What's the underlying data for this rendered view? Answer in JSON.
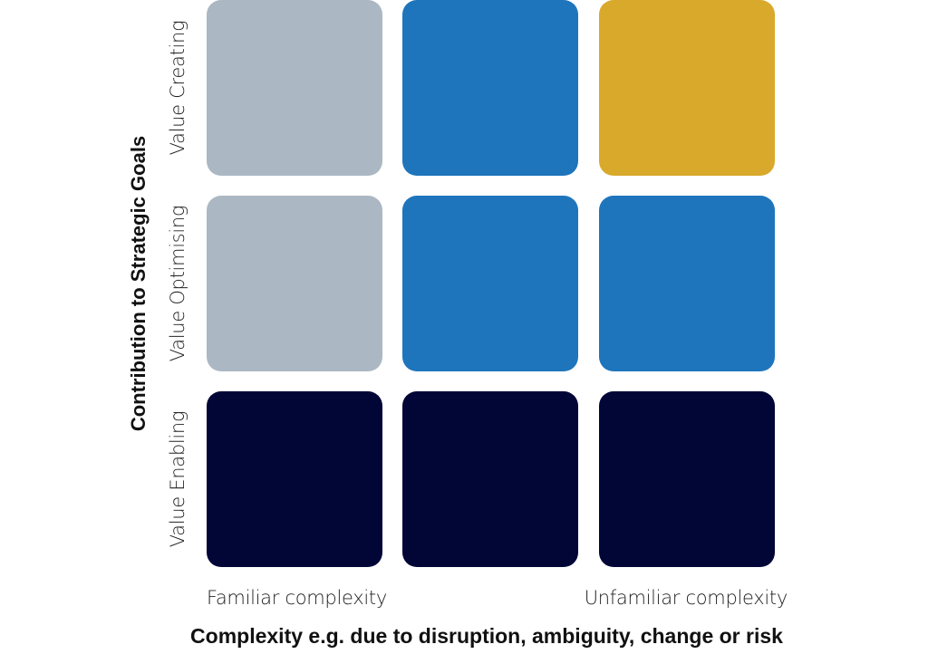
{
  "axes": {
    "y_title": "Contribution to Strategic Goals",
    "x_title": "Complexity e.g. due to disruption, ambiguity, change or risk"
  },
  "rows": [
    {
      "label": "Value Creating"
    },
    {
      "label": "Value Optimising"
    },
    {
      "label": "Value Enabling"
    }
  ],
  "columns": [
    {
      "label": "Familiar complexity"
    },
    {
      "label": ""
    },
    {
      "label": "Unfamiliar complexity"
    }
  ],
  "colors": {
    "grey": "#abb8c3",
    "blue": "#1e75bc",
    "gold": "#d8a92b",
    "navy": "#020637"
  },
  "grid": [
    [
      "grey",
      "blue",
      "gold"
    ],
    [
      "grey",
      "blue",
      "blue"
    ],
    [
      "navy",
      "navy",
      "navy"
    ]
  ]
}
